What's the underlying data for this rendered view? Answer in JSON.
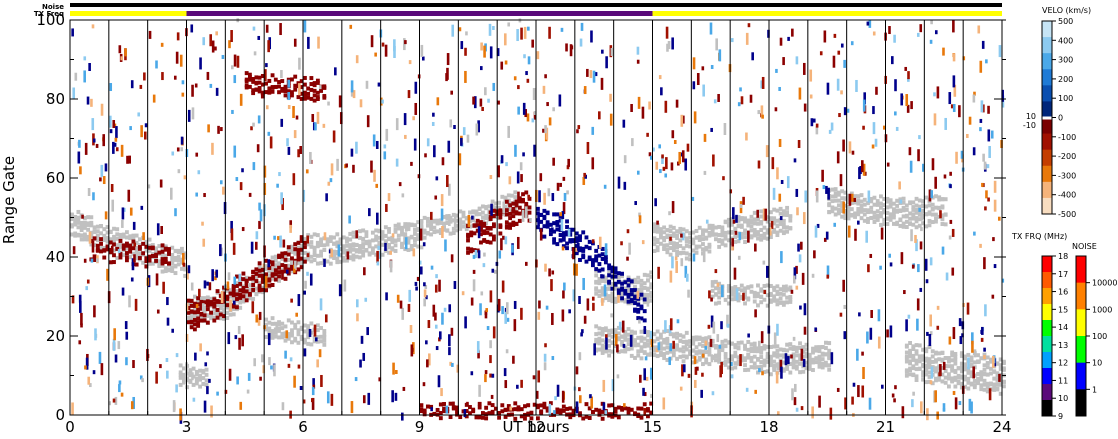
{
  "chart_data": {
    "type": "heatmap",
    "xlabel": "UT hours",
    "ylabel": "Range Gate",
    "xlim": [
      0,
      24
    ],
    "ylim": [
      0,
      100
    ],
    "x_ticks": [
      "0",
      "3",
      "6",
      "9",
      "12",
      "15",
      "18",
      "21",
      "24"
    ],
    "y_ticks": [
      "0",
      "20",
      "40",
      "60",
      "80",
      "100"
    ],
    "scan_boundaries_hours": [
      1,
      2,
      3,
      4,
      5,
      6,
      7,
      8,
      9,
      10,
      11,
      12,
      13,
      14,
      15,
      16,
      17,
      18,
      19,
      20,
      21,
      22,
      23
    ],
    "ground_scatter_color": "#c0c0c0",
    "top_bars": {
      "noise_label": "Noise",
      "txfreq_label": "TX Freq",
      "noise_color": "#000000",
      "txfreq_segments": [
        {
          "start": 0,
          "end": 3,
          "color": "#ffff00"
        },
        {
          "start": 3,
          "end": 15,
          "color": "#5a0a7a"
        },
        {
          "start": 15,
          "end": 24,
          "color": "#ffff00"
        }
      ]
    },
    "ground_scatter_bands": [
      {
        "x": [
          0.0,
          1.0,
          2.0,
          3.0
        ],
        "y": [
          49,
          44,
          41,
          38
        ],
        "w": 3
      },
      {
        "x": [
          3.0,
          4.0,
          5.0,
          6.0,
          7.0,
          8.0,
          9.0
        ],
        "y": [
          26,
          28,
          35,
          42,
          42,
          44,
          46
        ],
        "w": 3
      },
      {
        "x": [
          9.0,
          10.0,
          11.0,
          11.5
        ],
        "y": [
          47,
          49,
          52,
          55
        ],
        "w": 2
      },
      {
        "x": [
          13.5,
          14.5,
          15.0
        ],
        "y": [
          33,
          31,
          33
        ],
        "w": 3
      },
      {
        "x": [
          15.0,
          16.0,
          17.0,
          18.5
        ],
        "y": [
          45,
          43,
          47,
          49
        ],
        "w": 3
      },
      {
        "x": [
          19.5,
          20.5,
          21.5,
          22.5
        ],
        "y": [
          54,
          52,
          51,
          52
        ],
        "w": 3
      },
      {
        "x": [
          13.5,
          16.0,
          18.0,
          19.5
        ],
        "y": [
          19,
          17,
          14,
          15
        ],
        "w": 3
      },
      {
        "x": [
          21.5,
          22.5,
          24.0
        ],
        "y": [
          14,
          12,
          10
        ],
        "w": 4
      },
      {
        "x": [
          2.8,
          3.5
        ],
        "y": [
          10,
          9
        ],
        "w": 2
      },
      {
        "x": [
          5.0,
          6.5
        ],
        "y": [
          22,
          20
        ],
        "w": 2
      },
      {
        "x": [
          16.5,
          18.5
        ],
        "y": [
          31,
          30
        ],
        "w": 2
      }
    ],
    "velocity_bands": [
      {
        "x": [
          3.0,
          3.8,
          4.5,
          5.5,
          6.0
        ],
        "y": [
          25,
          28,
          33,
          38,
          42
        ],
        "w": 3,
        "color": "#8b0000"
      },
      {
        "x": [
          10.2,
          11.0,
          11.8
        ],
        "y": [
          44,
          49,
          53
        ],
        "w": 3,
        "color": "#8b0000"
      },
      {
        "x": [
          12.0,
          12.8,
          13.5,
          14.2,
          14.8
        ],
        "y": [
          50,
          45,
          40,
          33,
          25
        ],
        "w": 3,
        "color": "#00008b"
      },
      {
        "x": [
          9.0,
          13.0,
          15.0
        ],
        "y": [
          1,
          1,
          1
        ],
        "w": 1,
        "color": "#8b0000"
      },
      {
        "x": [
          0.5,
          2.5
        ],
        "y": [
          42,
          40
        ],
        "w": 2,
        "color": "#8b0000"
      },
      {
        "x": [
          4.5,
          6.5
        ],
        "y": [
          84,
          82
        ],
        "w": 2,
        "color": "#8b0000"
      }
    ],
    "velocity_scale": {
      "title": "VELO (km/s)",
      "min": -500,
      "max": 500,
      "ticks": [
        "500",
        "400",
        "300",
        "200",
        "100",
        "0",
        "-100",
        "-200",
        "-300",
        "-400",
        "-500"
      ],
      "side_labels": [
        "10",
        "-10"
      ],
      "colors": [
        "#c6e4f5",
        "#8ccaf0",
        "#4aa8e8",
        "#1f7bd6",
        "#0a4fb0",
        "#00267a",
        "#7a0000",
        "#a01000",
        "#c43e00",
        "#e8780a",
        "#f5b37a",
        "#f8ddc0"
      ]
    },
    "txfreq_scale": {
      "title": "TX FRQ (MHz)",
      "ticks": [
        "18",
        "17",
        "16",
        "15",
        "14",
        "13",
        "12",
        "11",
        "10",
        "9"
      ],
      "colors": [
        "#ff0000",
        "#ff5a00",
        "#ffa000",
        "#ffff00",
        "#00ff00",
        "#00e0a0",
        "#00a0ff",
        "#0000ff",
        "#5a0a7a",
        "#000000"
      ]
    },
    "noise_scale": {
      "title": "NOISE",
      "ticks": [
        "10000",
        "1000",
        "100",
        "10",
        "1"
      ],
      "colors": [
        "#ff0000",
        "#ff8000",
        "#ffff00",
        "#00ff00",
        "#0000ff",
        "#000000"
      ]
    }
  }
}
